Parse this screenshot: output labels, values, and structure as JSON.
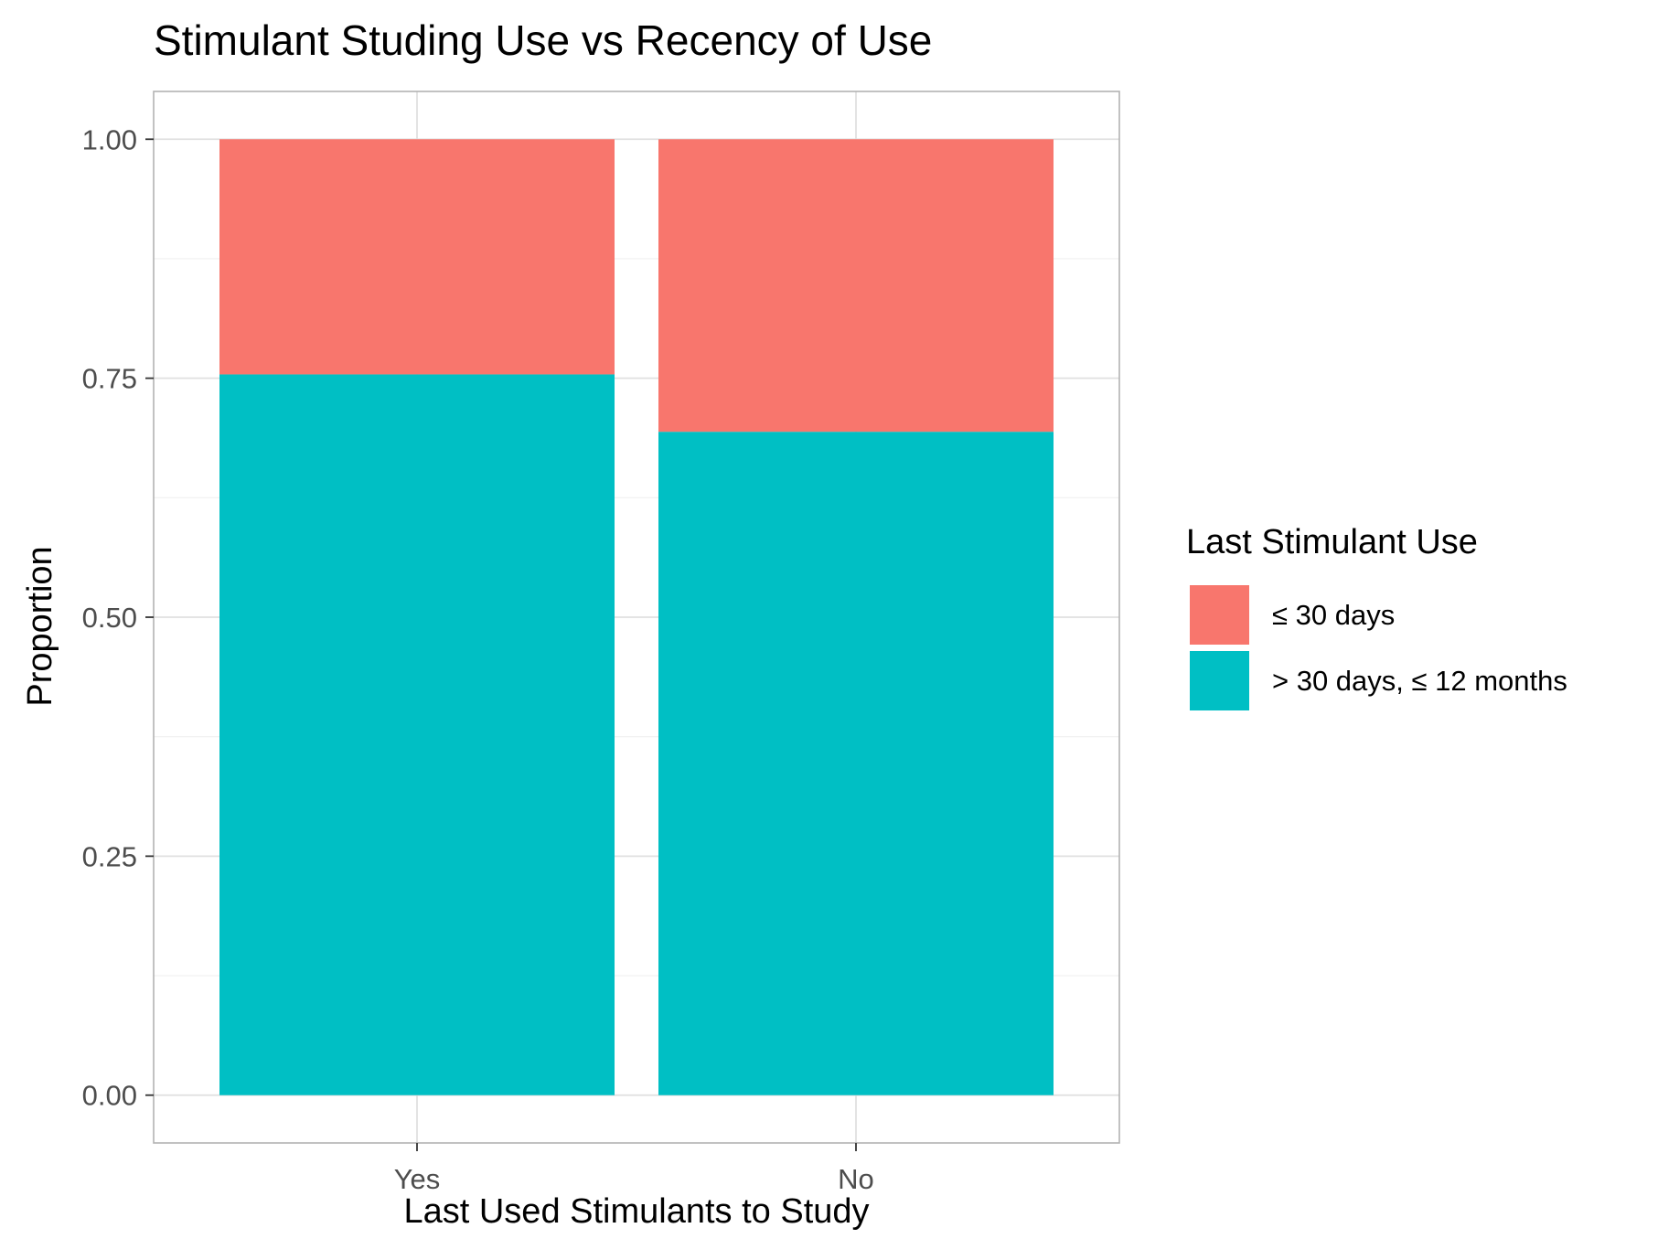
{
  "chart_data": {
    "type": "bar",
    "stacked": true,
    "title": "Stimulant Studing Use vs Recency of Use",
    "xlabel": "Last Used Stimulants to Study",
    "ylabel": "Proportion",
    "categories": [
      "Yes",
      "No"
    ],
    "ylim": [
      -0.05,
      1.05
    ],
    "yticks": [
      0,
      0.25,
      0.5,
      0.75,
      1
    ],
    "ytick_labels": [
      "0.00",
      "0.25",
      "0.50",
      "0.75",
      "1.00"
    ],
    "grid": true,
    "legend": {
      "title": "Last Stimulant Use",
      "placement": "right"
    },
    "series": [
      {
        "name": "> 30 days, ≤ 12 months",
        "color": "#00BFC4",
        "values": [
          0.754,
          0.694
        ]
      },
      {
        "name": "≤ 30 days",
        "color": "#F8766D",
        "values": [
          0.246,
          0.306
        ]
      }
    ],
    "legend_order": [
      "≤ 30 days",
      "> 30 days, ≤ 12 months"
    ]
  }
}
